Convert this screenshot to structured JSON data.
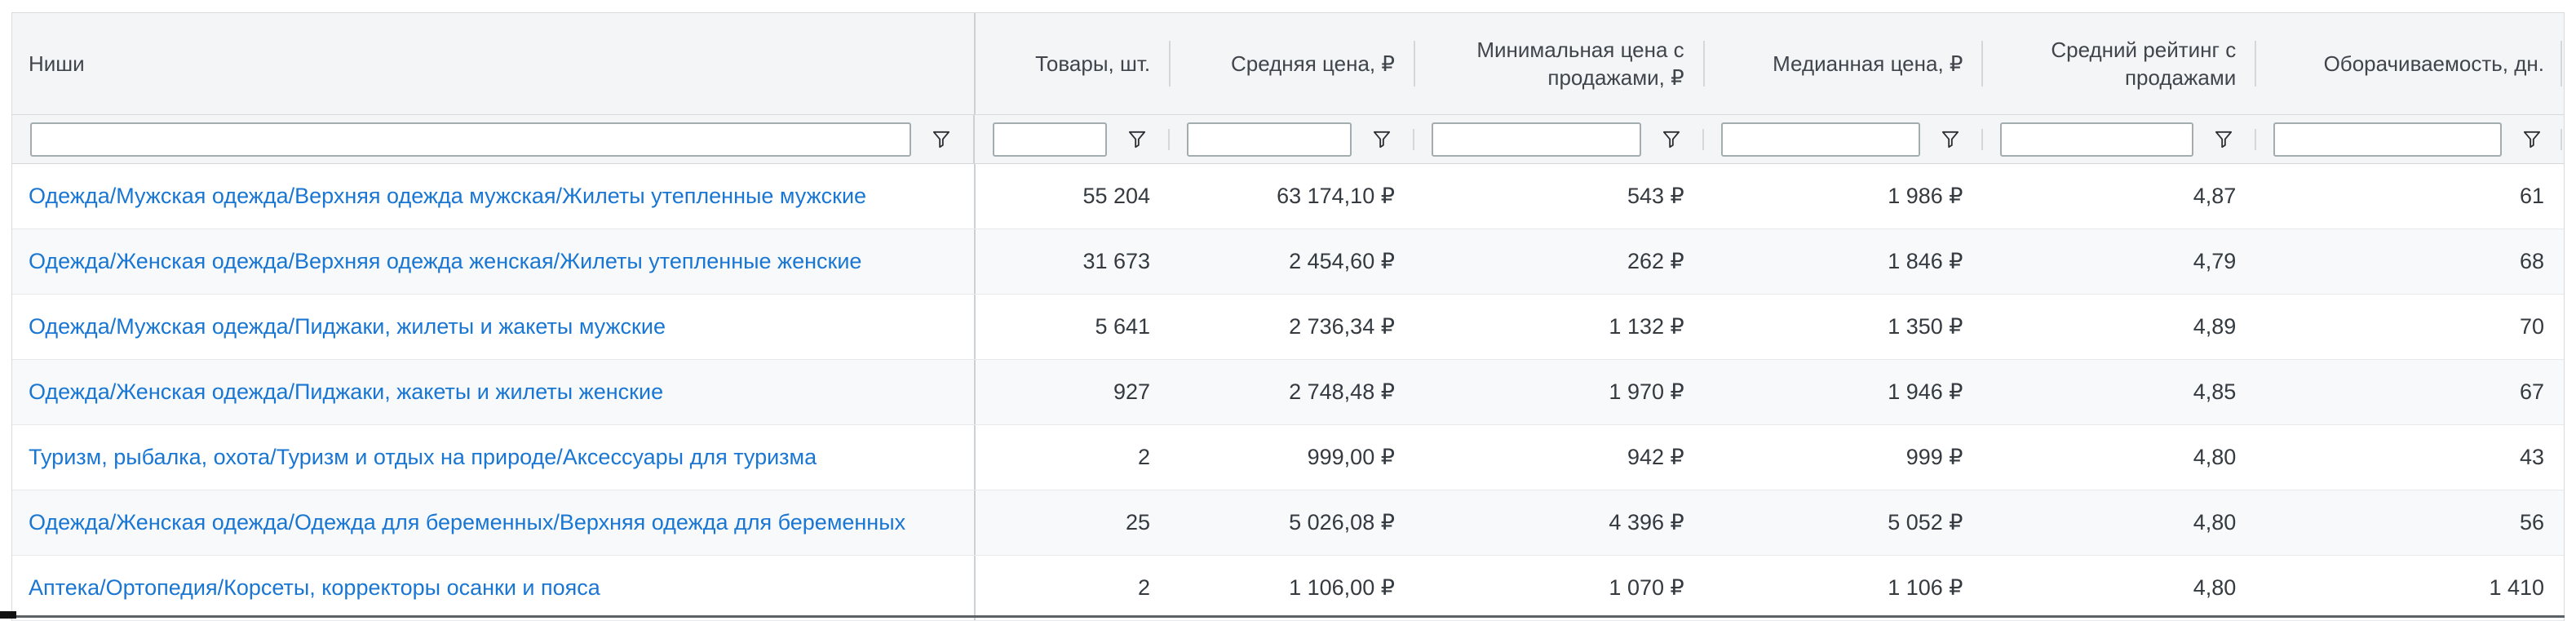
{
  "table": {
    "columns": [
      {
        "id": "niche",
        "label": "Ниши",
        "align": "left"
      },
      {
        "id": "products",
        "label": "Товары, шт.",
        "align": "right"
      },
      {
        "id": "avg_price",
        "label": "Средняя цена, ₽",
        "align": "right"
      },
      {
        "id": "min_price_with_sales",
        "label": "Минимальная цена с продажами, ₽",
        "align": "right"
      },
      {
        "id": "median_price",
        "label": "Медианная цена, ₽",
        "align": "right"
      },
      {
        "id": "avg_rating",
        "label": "Средний рейтинг с продажами",
        "align": "right"
      },
      {
        "id": "turnover_days",
        "label": "Оборачиваемость, дн.",
        "align": "right"
      }
    ],
    "rows": [
      {
        "niche": "Одежда/Мужская одежда/Верхняя одежда мужская/Жилеты утепленные мужские",
        "products": "55 204",
        "avg_price": "63 174,10 ₽",
        "min_price_with_sales": "543 ₽",
        "median_price": "1 986 ₽",
        "avg_rating": "4,87",
        "turnover_days": "61"
      },
      {
        "niche": "Одежда/Женская одежда/Верхняя одежда женская/Жилеты утепленные женские",
        "products": "31 673",
        "avg_price": "2 454,60 ₽",
        "min_price_with_sales": "262 ₽",
        "median_price": "1 846 ₽",
        "avg_rating": "4,79",
        "turnover_days": "68"
      },
      {
        "niche": "Одежда/Мужская одежда/Пиджаки, жилеты и жакеты мужские",
        "products": "5 641",
        "avg_price": "2 736,34 ₽",
        "min_price_with_sales": "1 132 ₽",
        "median_price": "1 350 ₽",
        "avg_rating": "4,89",
        "turnover_days": "70"
      },
      {
        "niche": "Одежда/Женская одежда/Пиджаки, жакеты и жилеты женские",
        "products": "927",
        "avg_price": "2 748,48 ₽",
        "min_price_with_sales": "1 970 ₽",
        "median_price": "1 946 ₽",
        "avg_rating": "4,85",
        "turnover_days": "67"
      },
      {
        "niche": "Туризм, рыбалка, охота/Туризм и отдых на природе/Аксессуары для туризма",
        "products": "2",
        "avg_price": "999,00 ₽",
        "min_price_with_sales": "942 ₽",
        "median_price": "999 ₽",
        "avg_rating": "4,80",
        "turnover_days": "43"
      },
      {
        "niche": "Одежда/Женская одежда/Одежда для беременных/Верхняя одежда для беременных",
        "products": "25",
        "avg_price": "5 026,08 ₽",
        "min_price_with_sales": "4 396 ₽",
        "median_price": "5 052 ₽",
        "avg_rating": "4,80",
        "turnover_days": "56"
      },
      {
        "niche": "Аптека/Ортопедия/Корсеты, корректоры осанки и пояса",
        "products": "2",
        "avg_price": "1 106,00 ₽",
        "min_price_with_sales": "1 070 ₽",
        "median_price": "1 106 ₽",
        "avg_rating": "4,80",
        "turnover_days": "1 410"
      }
    ]
  },
  "filters": {
    "values": [
      "",
      "",
      "",
      "",
      "",
      "",
      ""
    ],
    "placeholder": ""
  },
  "icons": {
    "filter": "funnel-icon"
  },
  "colors": {
    "link_blue": "#1976d2",
    "header_bg": "#f4f5f7",
    "row_alt_bg": "#f7f9fb",
    "row_border": "#e7e9ec",
    "outer_border": "#d9dcdf",
    "pinned_divider": "#ccd1d5",
    "input_border": "#a3acae",
    "funnel_icon": "#2b2f33",
    "text_dark": "#343a40",
    "header_text": "#40454c",
    "bottom_edge": "#5c6166"
  }
}
